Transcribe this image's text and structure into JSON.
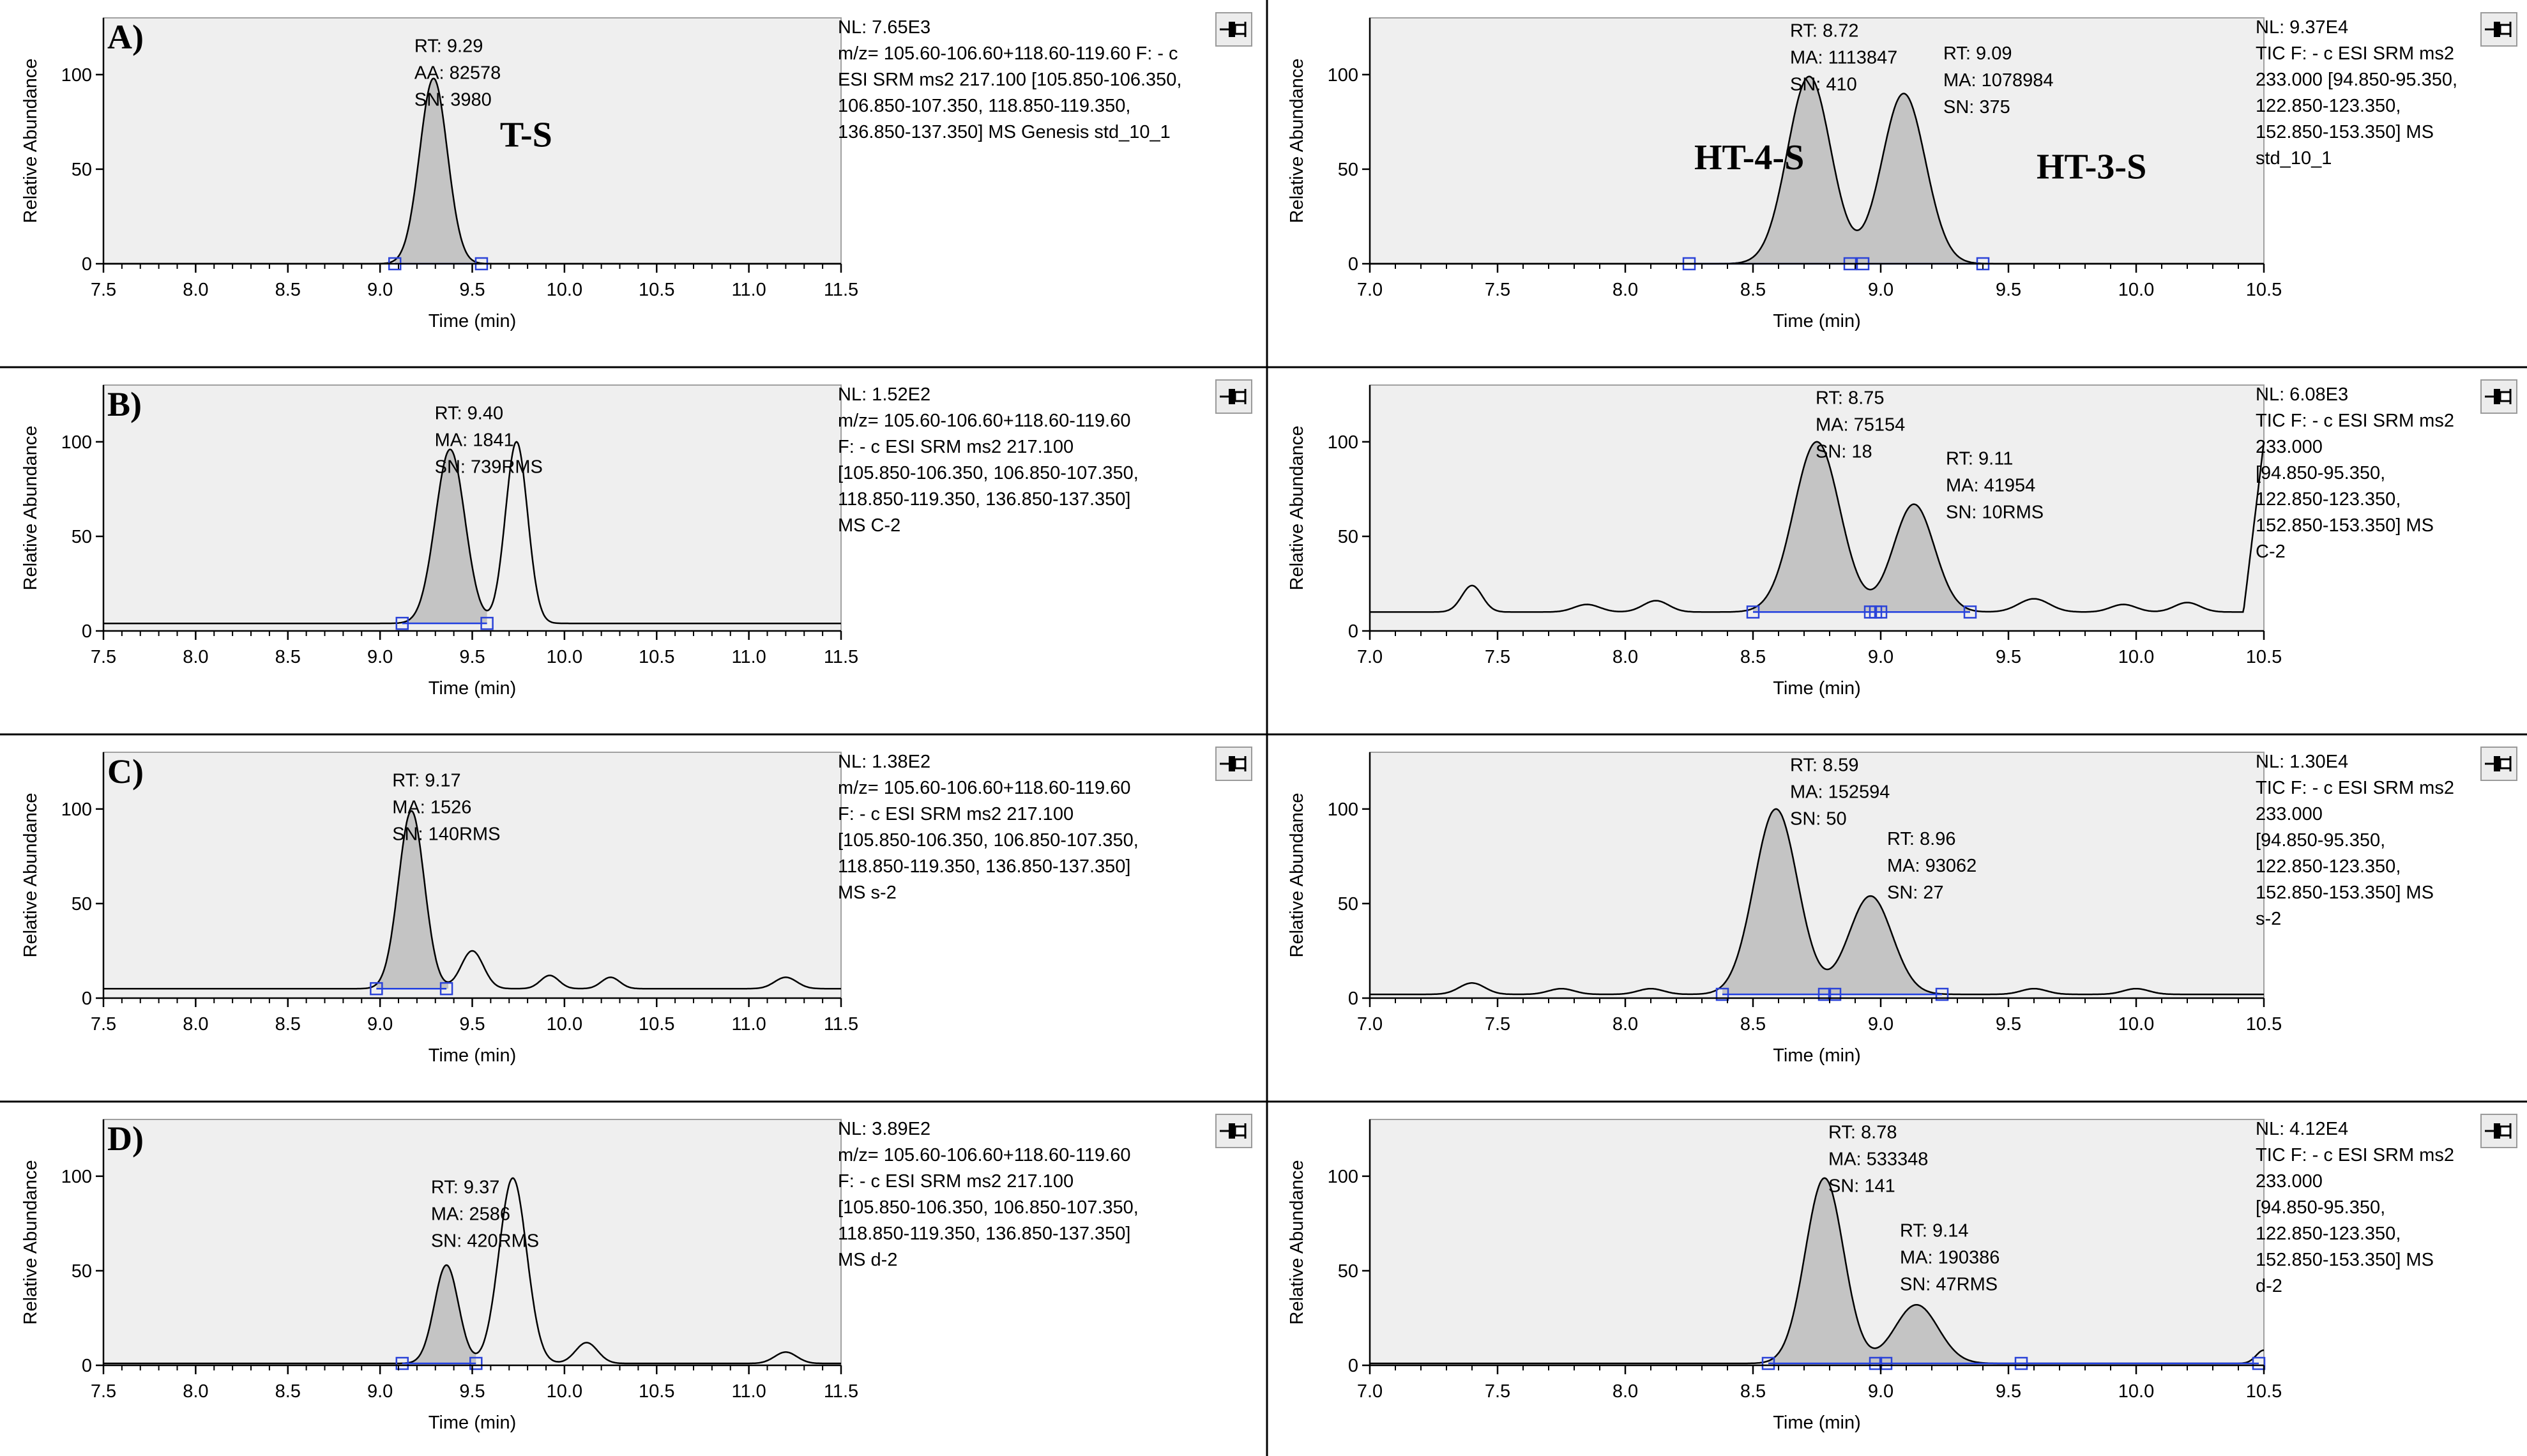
{
  "colors": {
    "trace": "#000000",
    "fill": "#c4c4c4",
    "plot_bg": "#efefef",
    "baseline": "#1f3ee0",
    "marker": "#2b43d8",
    "separator": "#000000"
  },
  "icons": {
    "pin": "pin-icon"
  },
  "chart_data": [
    {
      "id": "A-left",
      "panel_label": "A)",
      "type": "line",
      "xlabel": "Time (min)",
      "ylabel": "Relative Abundance",
      "xlim": [
        7.5,
        11.5
      ],
      "ylim": [
        0,
        130
      ],
      "xticks": [
        "7.5",
        "8.0",
        "8.5",
        "9.0",
        "9.5",
        "10.0",
        "10.5",
        "11.0",
        "11.5"
      ],
      "yticks": [
        "0",
        "50",
        "100"
      ],
      "baseline_level": 0,
      "peaks": [
        {
          "rt": 9.29,
          "h": 98,
          "w": 0.075,
          "shade": [
            9.08,
            9.55
          ],
          "labels": [
            "RT: 9.29",
            "AA: 82578",
            "SN: 3980"
          ],
          "label_at": [
            9.29,
            112
          ]
        }
      ],
      "extra_peaks": [],
      "bumps": [],
      "end_rise": null,
      "markers": [
        9.08,
        9.55
      ],
      "compounds": [
        {
          "text": "T-S",
          "at": [
            9.65,
            62
          ]
        }
      ],
      "info": [
        "NL: 7.65E3",
        "m/z= 105.60-106.60+118.60-119.60 F: - c",
        "ESI SRM ms2 217.100 [105.850-106.350,",
        "106.850-107.350, 118.850-119.350,",
        "136.850-137.350]  MS  Genesis std_10_1"
      ]
    },
    {
      "id": "A-right",
      "panel_label": "",
      "type": "line",
      "xlabel": "Time (min)",
      "ylabel": "Relative Abundance",
      "xlim": [
        7.0,
        10.5
      ],
      "ylim": [
        0,
        130
      ],
      "xticks": [
        "7.0",
        "7.5",
        "8.0",
        "8.5",
        "9.0",
        "9.5",
        "10.0",
        "10.5"
      ],
      "yticks": [
        "0",
        "50",
        "100"
      ],
      "baseline_level": 0,
      "peaks": [
        {
          "rt": 8.72,
          "h": 99,
          "w": 0.085,
          "shade": [
            8.25,
            8.9
          ],
          "labels": [
            "RT: 8.72",
            "MA: 1113847",
            "SN: 410"
          ],
          "label_at": [
            8.72,
            120
          ]
        },
        {
          "rt": 9.09,
          "h": 90,
          "w": 0.085,
          "shade": [
            8.9,
            9.4
          ],
          "labels": [
            "RT: 9.09",
            "MA: 1078984",
            "SN: 375"
          ],
          "label_at": [
            9.32,
            108
          ]
        }
      ],
      "extra_peaks": [],
      "bumps": [],
      "end_rise": null,
      "markers": [
        8.25,
        8.88,
        8.93,
        9.4
      ],
      "compounds": [
        {
          "text": "HT-4-S",
          "at": [
            8.27,
            50
          ]
        },
        {
          "text": "HT-3-S",
          "at": [
            9.61,
            45
          ]
        }
      ],
      "info": [
        "NL: 9.37E4",
        "TIC F: - c ESI SRM ms2",
        "233.000 [94.850-95.350,",
        "122.850-123.350,",
        "152.850-153.350]  MS",
        "std_10_1"
      ]
    },
    {
      "id": "B-left",
      "panel_label": "B)",
      "type": "line",
      "xlabel": "Time (min)",
      "ylabel": "Relative Abundance",
      "xlim": [
        7.5,
        11.5
      ],
      "ylim": [
        0,
        130
      ],
      "xticks": [
        "7.5",
        "8.0",
        "8.5",
        "9.0",
        "9.5",
        "10.0",
        "10.5",
        "11.0",
        "11.5"
      ],
      "yticks": [
        "0",
        "50",
        "100"
      ],
      "baseline_level": 4,
      "peaks": [
        {
          "rt": 9.38,
          "h": 92,
          "w": 0.08,
          "shade": [
            9.12,
            9.58
          ],
          "labels": [
            "RT: 9.40",
            "MA: 1841",
            "SN: 739RMS"
          ],
          "label_at": [
            9.4,
            112
          ]
        }
      ],
      "extra_peaks": [
        {
          "rt": 9.74,
          "h": 96,
          "w": 0.06
        }
      ],
      "bumps": [],
      "end_rise": null,
      "markers": [
        9.12,
        9.58
      ],
      "compounds": [],
      "info": [
        "NL: 1.52E2",
        "m/z= 105.60-106.60+118.60-119.60",
        "F: - c ESI SRM ms2 217.100",
        "[105.850-106.350, 106.850-107.350,",
        "118.850-119.350, 136.850-137.350]",
        "MS C-2"
      ]
    },
    {
      "id": "B-right",
      "panel_label": "",
      "type": "line",
      "xlabel": "Time (min)",
      "ylabel": "Relative Abundance",
      "xlim": [
        7.0,
        10.5
      ],
      "ylim": [
        0,
        130
      ],
      "xticks": [
        "7.0",
        "7.5",
        "8.0",
        "8.5",
        "9.0",
        "9.5",
        "10.0",
        "10.5"
      ],
      "yticks": [
        "0",
        "50",
        "100"
      ],
      "baseline_level": 10,
      "peaks": [
        {
          "rt": 8.75,
          "h": 90,
          "w": 0.09,
          "shade": [
            8.5,
            8.98
          ],
          "labels": [
            "RT: 8.75",
            "MA: 75154",
            "SN: 18"
          ],
          "label_at": [
            8.82,
            120
          ]
        },
        {
          "rt": 9.13,
          "h": 57,
          "w": 0.08,
          "shade": [
            8.98,
            9.35
          ],
          "labels": [
            "RT: 9.11",
            "MA: 41954",
            "SN: 10RMS"
          ],
          "label_at": [
            9.33,
            88
          ]
        }
      ],
      "extra_peaks": [],
      "bumps": [
        [
          7.4,
          14,
          0.04
        ],
        [
          7.85,
          4,
          0.05
        ],
        [
          8.12,
          6,
          0.05
        ],
        [
          9.6,
          7,
          0.06
        ],
        [
          9.95,
          4,
          0.05
        ],
        [
          10.2,
          5,
          0.05
        ]
      ],
      "end_rise": {
        "x0": 10.42,
        "to": 100
      },
      "markers": [
        8.5,
        8.96,
        8.98,
        9.0,
        9.35
      ],
      "compounds": [],
      "info": [
        "NL: 6.08E3",
        "TIC F: - c ESI SRM ms2",
        "233.000",
        "[94.850-95.350,",
        "122.850-123.350,",
        "152.850-153.350]  MS",
        "C-2"
      ]
    },
    {
      "id": "C-left",
      "panel_label": "C)",
      "type": "line",
      "xlabel": "Time (min)",
      "ylabel": "Relative Abundance",
      "xlim": [
        7.5,
        11.5
      ],
      "ylim": [
        0,
        130
      ],
      "xticks": [
        "7.5",
        "8.0",
        "8.5",
        "9.0",
        "9.5",
        "10.0",
        "10.5",
        "11.0",
        "11.5"
      ],
      "yticks": [
        "0",
        "50",
        "100"
      ],
      "baseline_level": 5,
      "peaks": [
        {
          "rt": 9.17,
          "h": 94,
          "w": 0.07,
          "shade": [
            8.98,
            9.37
          ],
          "labels": [
            "RT: 9.17",
            "MA: 1526",
            "SN: 140RMS"
          ],
          "label_at": [
            9.17,
            112
          ]
        }
      ],
      "extra_peaks": [],
      "bumps": [
        [
          9.5,
          20,
          0.06
        ],
        [
          9.92,
          7,
          0.05
        ],
        [
          10.25,
          6,
          0.05
        ],
        [
          11.2,
          6,
          0.06
        ]
      ],
      "end_rise": null,
      "markers": [
        8.98,
        9.36
      ],
      "compounds": [],
      "info": [
        "NL: 1.38E2",
        "m/z= 105.60-106.60+118.60-119.60",
        "F: - c ESI SRM ms2 217.100",
        "[105.850-106.350, 106.850-107.350,",
        "118.850-119.350, 136.850-137.350]",
        "MS s-2"
      ]
    },
    {
      "id": "C-right",
      "panel_label": "",
      "type": "line",
      "xlabel": "Time (min)",
      "ylabel": "Relative Abundance",
      "xlim": [
        7.0,
        10.5
      ],
      "ylim": [
        0,
        130
      ],
      "xticks": [
        "7.0",
        "7.5",
        "8.0",
        "8.5",
        "9.0",
        "9.5",
        "10.0",
        "10.5"
      ],
      "yticks": [
        "0",
        "50",
        "100"
      ],
      "baseline_level": 2,
      "peaks": [
        {
          "rt": 8.59,
          "h": 98,
          "w": 0.085,
          "shade": [
            8.38,
            8.8
          ],
          "labels": [
            "RT: 8.59",
            "MA: 152594",
            "SN: 50"
          ],
          "label_at": [
            8.72,
            120
          ]
        },
        {
          "rt": 8.96,
          "h": 52,
          "w": 0.085,
          "shade": [
            8.8,
            9.24
          ],
          "labels": [
            "RT: 8.96",
            "MA: 93062",
            "SN: 27"
          ],
          "label_at": [
            9.1,
            81
          ]
        }
      ],
      "extra_peaks": [],
      "bumps": [
        [
          7.4,
          6,
          0.05
        ],
        [
          7.75,
          3,
          0.05
        ],
        [
          8.1,
          3,
          0.05
        ],
        [
          9.6,
          3,
          0.05
        ],
        [
          10.0,
          3,
          0.05
        ]
      ],
      "end_rise": null,
      "markers": [
        8.38,
        8.78,
        8.82,
        9.24
      ],
      "compounds": [],
      "info": [
        "NL: 1.30E4",
        "TIC F: - c ESI SRM ms2",
        "233.000",
        "[94.850-95.350,",
        "122.850-123.350,",
        "152.850-153.350]  MS",
        "s-2"
      ]
    },
    {
      "id": "D-left",
      "panel_label": "D)",
      "type": "line",
      "xlabel": "Time (min)",
      "ylabel": "Relative Abundance",
      "xlim": [
        7.5,
        11.5
      ],
      "ylim": [
        0,
        130
      ],
      "xticks": [
        "7.5",
        "8.0",
        "8.5",
        "9.0",
        "9.5",
        "10.0",
        "10.5",
        "11.0",
        "11.5"
      ],
      "yticks": [
        "0",
        "50",
        "100"
      ],
      "baseline_level": 1,
      "peaks": [
        {
          "rt": 9.36,
          "h": 52,
          "w": 0.065,
          "shade": [
            9.12,
            9.52
          ],
          "labels": [
            "RT: 9.37",
            "MA: 2586",
            "SN: 420RMS"
          ],
          "label_at": [
            9.38,
            91
          ]
        }
      ],
      "extra_peaks": [
        {
          "rt": 9.72,
          "h": 98,
          "w": 0.075
        }
      ],
      "bumps": [
        [
          10.12,
          11,
          0.06
        ],
        [
          11.2,
          6,
          0.06
        ]
      ],
      "end_rise": null,
      "markers": [
        9.12,
        9.52
      ],
      "compounds": [],
      "info": [
        "NL: 3.89E2",
        "m/z= 105.60-106.60+118.60-119.60",
        "F: - c ESI SRM ms2 217.100",
        "[105.850-106.350, 106.850-107.350,",
        "118.850-119.350, 136.850-137.350]",
        "MS d-2"
      ]
    },
    {
      "id": "D-right",
      "panel_label": "",
      "type": "line",
      "xlabel": "Time (min)",
      "ylabel": "Relative Abundance",
      "xlim": [
        7.0,
        10.5
      ],
      "ylim": [
        0,
        130
      ],
      "xticks": [
        "7.0",
        "7.5",
        "8.0",
        "8.5",
        "9.0",
        "9.5",
        "10.0",
        "10.5"
      ],
      "yticks": [
        "0",
        "50",
        "100"
      ],
      "baseline_level": 1,
      "peaks": [
        {
          "rt": 8.78,
          "h": 98,
          "w": 0.075,
          "shade": [
            8.56,
            9.0
          ],
          "labels": [
            "RT: 8.78",
            "MA: 533348",
            "SN: 141"
          ],
          "label_at": [
            8.87,
            120
          ]
        },
        {
          "rt": 9.14,
          "h": 31,
          "w": 0.085,
          "shade": [
            9.0,
            9.55
          ],
          "labels": [
            "RT: 9.14",
            "MA: 190386",
            "SN: 47RMS"
          ],
          "label_at": [
            9.15,
            68
          ]
        }
      ],
      "extra_peaks": [],
      "bumps": [
        [
          10.5,
          7,
          0.03
        ]
      ],
      "end_rise": null,
      "markers": [
        8.56,
        8.98,
        9.02,
        9.55,
        10.48
      ],
      "compounds": [],
      "info": [
        "NL: 4.12E4",
        "TIC F: - c ESI SRM ms2",
        "233.000",
        "[94.850-95.350,",
        "122.850-123.350,",
        "152.850-153.350]  MS",
        "d-2"
      ]
    }
  ]
}
